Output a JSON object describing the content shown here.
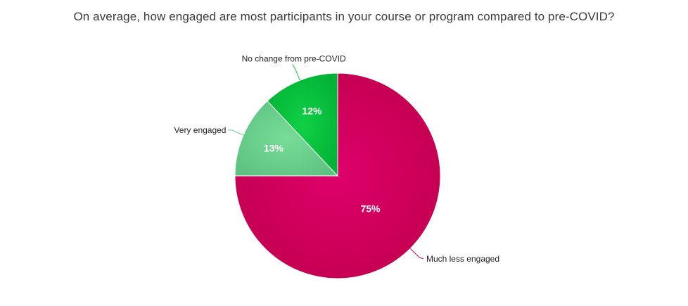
{
  "chart_data": {
    "type": "pie",
    "title": "On average, how engaged are most participants in your course or program compared to pre-COVID?",
    "slices": [
      {
        "label": "Much less engaged",
        "value": 75,
        "value_label": "75%",
        "color": "#d0005a"
      },
      {
        "label": "Very engaged",
        "value": 13,
        "value_label": "13%",
        "color": "#6cd38e"
      },
      {
        "label": "No change from pre-COVID",
        "value": 12,
        "value_label": "12%",
        "color": "#0cc63e"
      }
    ]
  }
}
